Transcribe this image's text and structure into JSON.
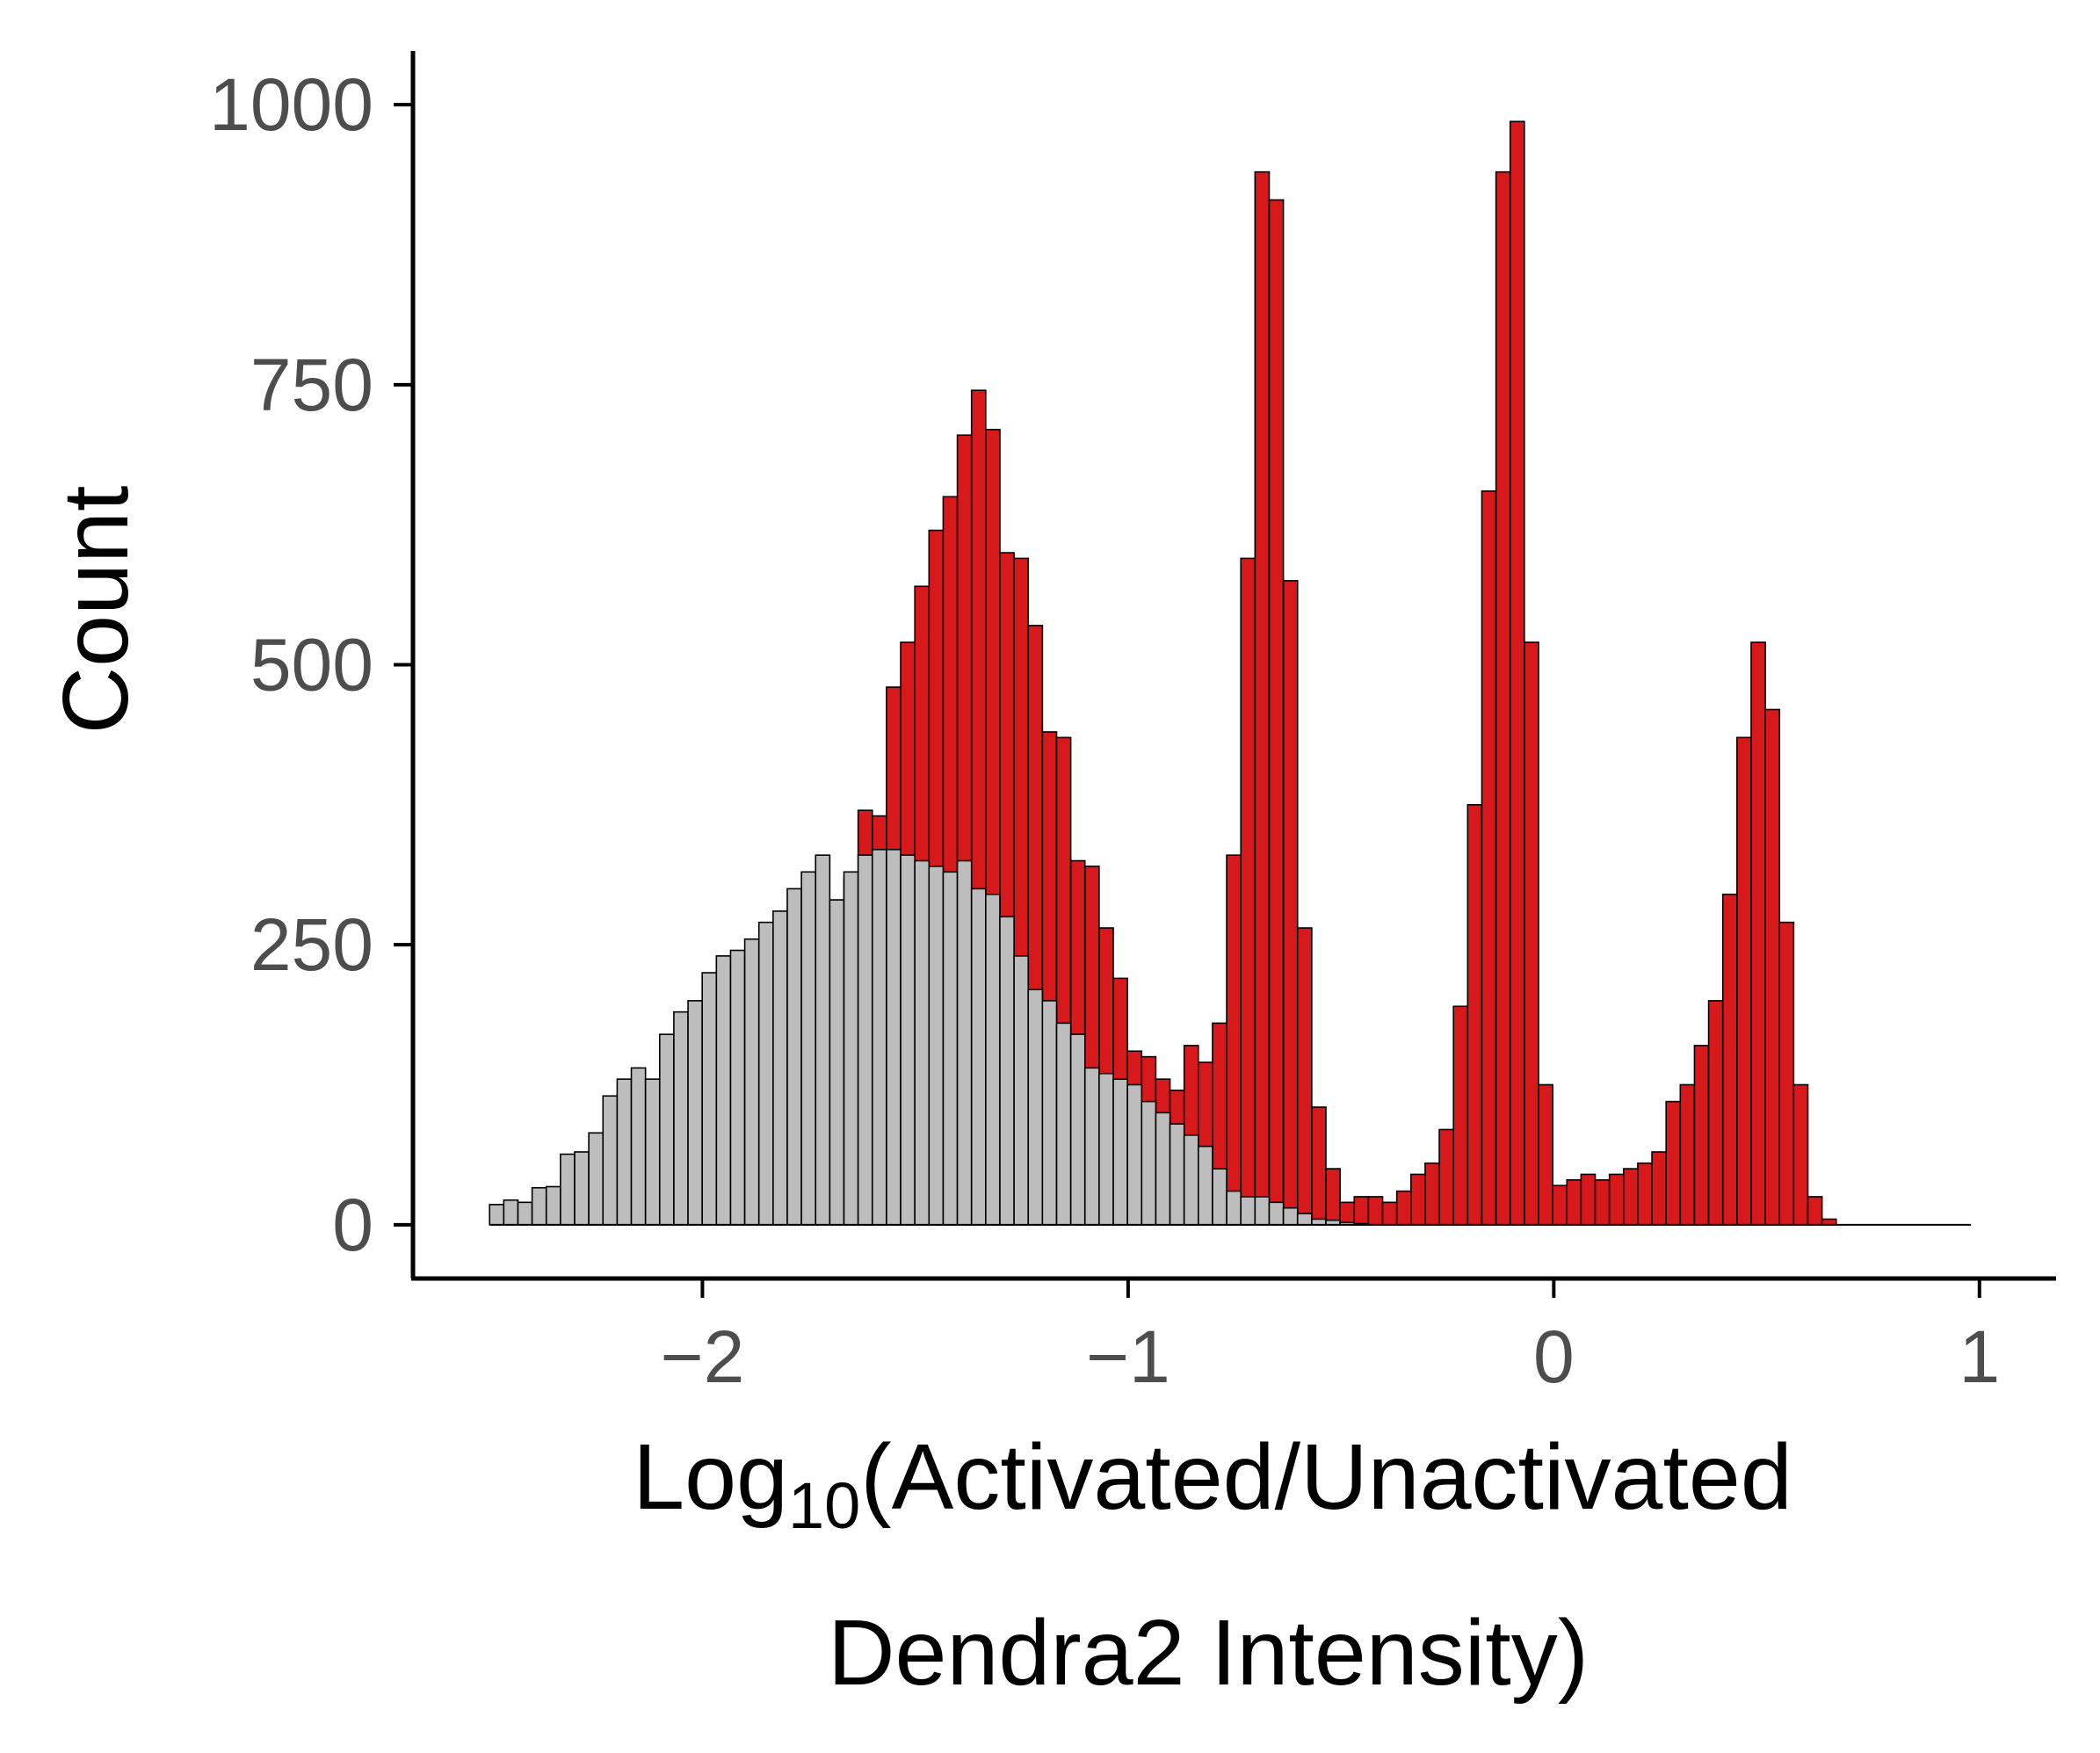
{
  "chart_data": {
    "type": "histogram",
    "title": "",
    "xlabel": {
      "line1_prefix": "Log",
      "line1_subscript": "10",
      "line1_suffix": "(Activated/Unactivated",
      "line2": "Dendra2 Intensity)"
    },
    "ylabel": "Count",
    "xlim": [
      -2.68,
      1.18
    ],
    "ylim": [
      -48,
      1048
    ],
    "x_ticks": [
      -2,
      -1,
      0,
      1
    ],
    "x_tick_labels": [
      "−2",
      "−1",
      "0",
      "1"
    ],
    "y_ticks": [
      0,
      250,
      500,
      750,
      1000
    ],
    "y_tick_labels": [
      "0",
      "250",
      "500",
      "750",
      "1000"
    ],
    "grid": false,
    "legend": "none",
    "bins": {
      "start": -2.5,
      "width": 0.0333
    },
    "series": [
      {
        "color": "#d7191c",
        "values": [
          0,
          0,
          0,
          0,
          0,
          0,
          0,
          0,
          0,
          0,
          0,
          0,
          0,
          0,
          0,
          0,
          0,
          0,
          0,
          0,
          0,
          0,
          0,
          0,
          290,
          310,
          370,
          365,
          480,
          520,
          570,
          620,
          650,
          705,
          745,
          710,
          600,
          595,
          535,
          440,
          435,
          325,
          320,
          265,
          220,
          155,
          150,
          130,
          120,
          160,
          145,
          180,
          330,
          595,
          940,
          915,
          575,
          265,
          105,
          50,
          20,
          25,
          25,
          20,
          30,
          45,
          55,
          85,
          195,
          375,
          655,
          940,
          985,
          520,
          125,
          35,
          40,
          45,
          40,
          45,
          50,
          55,
          65,
          110,
          125,
          160,
          200,
          295,
          435,
          520,
          460,
          270,
          125,
          25,
          5,
          0,
          0,
          0,
          0,
          0,
          0,
          0,
          0,
          0,
          0,
          0,
          0,
          0
        ]
      },
      {
        "color": "#bdbdbd",
        "values": [
          18,
          22,
          20,
          33,
          34,
          63,
          65,
          82,
          115,
          130,
          140,
          130,
          170,
          190,
          200,
          225,
          240,
          245,
          255,
          270,
          280,
          300,
          315,
          330,
          290,
          315,
          330,
          335,
          335,
          330,
          325,
          320,
          315,
          325,
          300,
          295,
          275,
          240,
          210,
          200,
          180,
          170,
          140,
          135,
          130,
          125,
          110,
          100,
          90,
          80,
          70,
          50,
          30,
          25,
          25,
          20,
          15,
          10,
          5,
          4,
          2,
          1,
          0,
          0,
          0,
          0,
          0,
          0,
          0,
          0,
          0,
          0,
          0,
          0,
          0,
          0,
          0,
          0,
          0,
          0,
          0,
          0,
          0,
          0,
          0,
          0,
          0,
          0,
          0,
          0,
          0,
          0,
          0,
          0,
          0,
          0,
          0,
          0,
          0,
          0,
          0,
          0,
          0,
          0,
          0
        ]
      }
    ]
  }
}
